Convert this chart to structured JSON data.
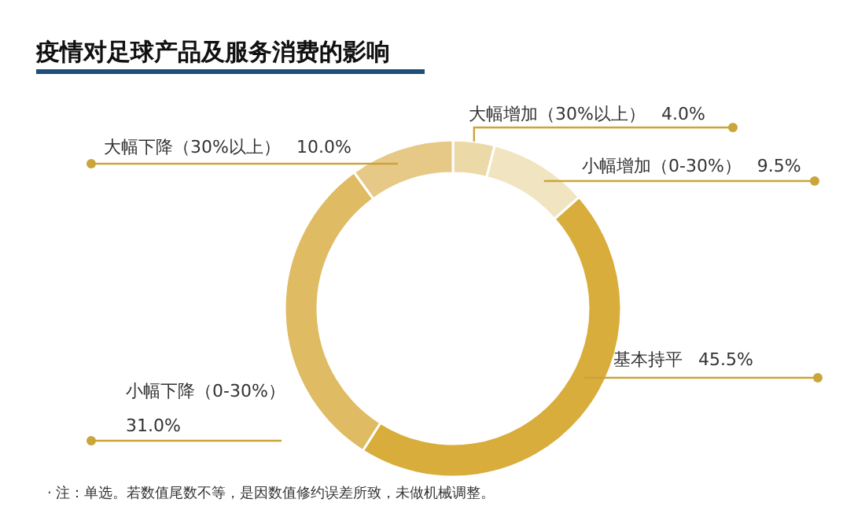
{
  "chart_data": {
    "type": "donut",
    "title": "疫情对足球产品及服务消费的影响",
    "categories": [
      "大幅增加（30%以上）",
      "小幅增加（0-30%）",
      "基本持平",
      "小幅下降（0-30%）",
      "大幅下降（30%以上）"
    ],
    "values": [
      4.0,
      9.5,
      45.5,
      31.0,
      10.0
    ],
    "value_labels": [
      "4.0%",
      "9.5%",
      "45.5%",
      "31.0%",
      "10.0%"
    ],
    "colors": [
      "#ecd9a8",
      "#f1e4c0",
      "#d8ad3c",
      "#dfbb63",
      "#e6c987"
    ],
    "annotations": [
      "· 注：单选。若数值尾数不等，是因数值修约误差所致，未做机械调整。"
    ]
  }
}
